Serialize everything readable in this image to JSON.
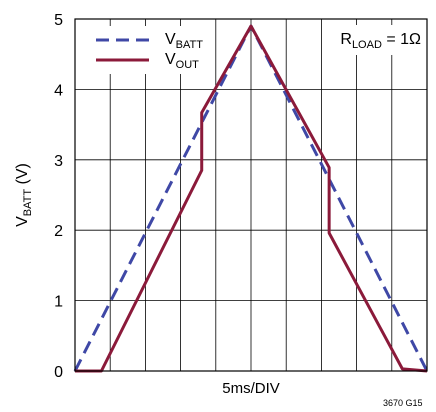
{
  "chart_data": {
    "type": "line",
    "x": [
      0,
      1,
      2,
      3,
      4,
      5,
      6,
      7,
      8,
      9,
      10
    ],
    "xlabel": "5ms/DIV",
    "ylabel": {
      "main": "V",
      "sub": "BATT",
      "tail": " (V)"
    },
    "ylim": [
      0,
      5
    ],
    "yticks": [
      "0",
      "1",
      "2",
      "3",
      "4",
      "5"
    ],
    "xgrid_divisions": 10,
    "grid": true,
    "legend_position": "top-left",
    "annotation": {
      "main": "R",
      "sub": "LOAD",
      "tail": " = 1Ω",
      "position": "top-right"
    },
    "figure_code": "3670 G15",
    "series": [
      {
        "name": "VBATT",
        "label_main": "V",
        "label_sub": "BATT",
        "color": "#3f48a6",
        "style": "dashed",
        "points": [
          [
            0,
            0
          ],
          [
            5,
            4.9
          ],
          [
            10,
            0
          ]
        ]
      },
      {
        "name": "VOUT",
        "label_main": "V",
        "label_sub": "OUT",
        "color": "#8b1a3a",
        "style": "solid",
        "points": [
          [
            0,
            0
          ],
          [
            0.75,
            0
          ],
          [
            3.6,
            2.85
          ],
          [
            3.6,
            3.67
          ],
          [
            5,
            4.9
          ],
          [
            7.22,
            2.89
          ],
          [
            7.22,
            1.96
          ],
          [
            9.3,
            0.03
          ],
          [
            10,
            0
          ]
        ]
      }
    ]
  }
}
